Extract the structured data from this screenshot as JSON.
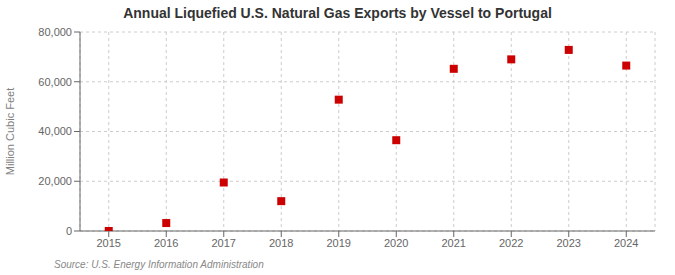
{
  "chart_data": {
    "type": "scatter",
    "title": "Annual Liquefied U.S. Natural Gas Exports by Vessel to Portugal",
    "ylabel": "Million Cubic Feet",
    "annotations": [
      "Source: U.S. Energy Information Administration"
    ],
    "x": [
      2015,
      2016,
      2017,
      2018,
      2019,
      2020,
      2021,
      2022,
      2023,
      2024
    ],
    "values": [
      0,
      3200,
      19500,
      12000,
      52800,
      36500,
      65200,
      69000,
      72800,
      66500
    ],
    "xlim": [
      2014.5,
      2024.5
    ],
    "xticks": [
      2015,
      2016,
      2017,
      2018,
      2019,
      2020,
      2021,
      2022,
      2023,
      2024
    ],
    "ylim": [
      0,
      80000
    ],
    "yticks": [
      0,
      {
        "value": 20000,
        "label": "20,000"
      },
      {
        "value": 40000,
        "label": "40,000"
      },
      {
        "value": 60000,
        "label": "60,000"
      },
      {
        "value": 80000,
        "label": "80,000"
      }
    ],
    "color": "#cc0000",
    "marker": "square",
    "grid": true
  }
}
